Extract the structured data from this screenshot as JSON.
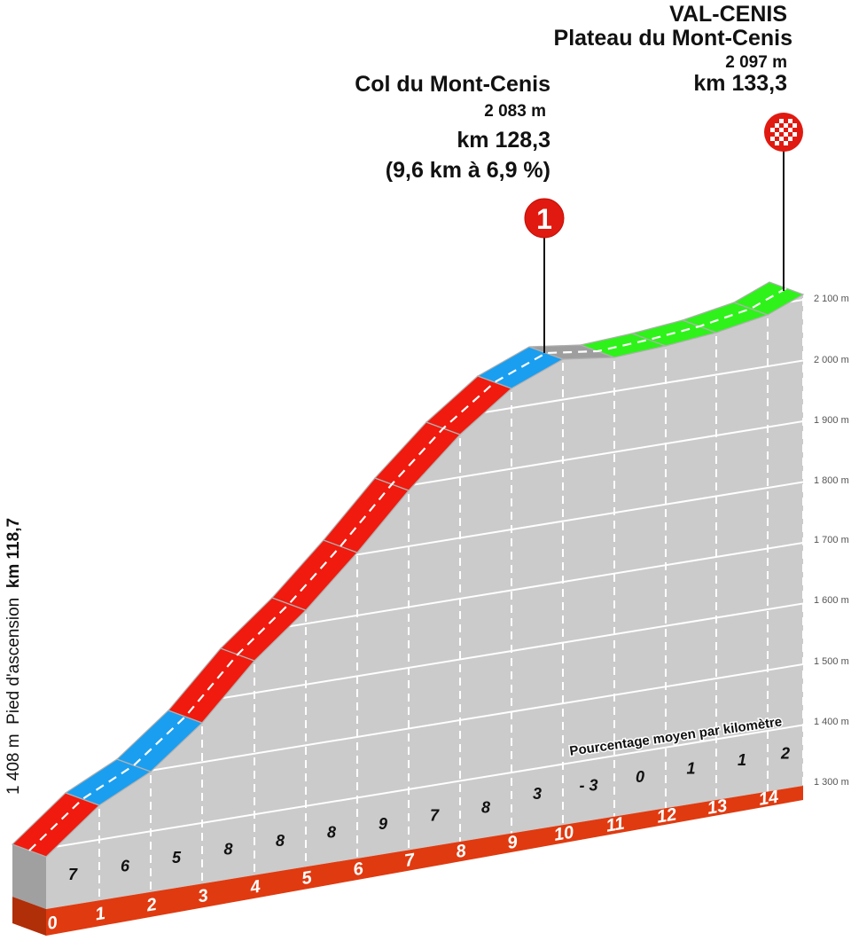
{
  "chart_data": {
    "type": "area",
    "title": "Col du Mont-Cenis / Val-Cenis climb profile",
    "xlabel": "km",
    "ylabel": "altitude (m)",
    "ylim": [
      1300,
      2100
    ],
    "yticks": [
      "1 300 m",
      "1 400 m",
      "1 500 m",
      "1 600 m",
      "1 700 m",
      "1 800 m",
      "1 900 m",
      "2 000 m",
      "2 100 m"
    ],
    "x_km_labels": [
      "0",
      "1",
      "2",
      "3",
      "4",
      "5",
      "6",
      "7",
      "8",
      "9",
      "10",
      "11",
      "12",
      "13",
      "14"
    ],
    "gradient_per_km": [
      "7",
      "6",
      "5",
      "8",
      "8",
      "8",
      "9",
      "7",
      "8",
      "3",
      "- 3",
      "0",
      "1",
      "1",
      "2"
    ],
    "segment_colors": [
      "red",
      "blue",
      "blue",
      "red",
      "red",
      "red",
      "red",
      "red",
      "red",
      "blue",
      "gray",
      "green",
      "green",
      "green",
      "green"
    ],
    "start": {
      "altitude": "1 408 m",
      "label": "Pied d'ascension",
      "km": "km 118,7"
    },
    "summits": [
      {
        "name": "Col du Mont-Cenis",
        "altitude": "2 083 m",
        "km": "km 128,3",
        "detail": "(9,6 km à 6,9 %)",
        "marker": "1"
      },
      {
        "name": "VAL-CENIS",
        "subtitle": "Plateau du Mont-Cenis",
        "altitude": "2 097 m",
        "km": "km 133,3",
        "marker": "finish-flag"
      }
    ],
    "annotation": "Pourcentage moyen par kilomètre",
    "grid": true,
    "legend": "none"
  },
  "colors": {
    "red": "#f01a0e",
    "blue": "#1a9ef0",
    "green": "#2ef21a",
    "gray": "#9e9e9e",
    "face": "#cbcbcb",
    "base": "#e03a10",
    "base_side": "#b02e08",
    "side": "#a0a0a0"
  }
}
